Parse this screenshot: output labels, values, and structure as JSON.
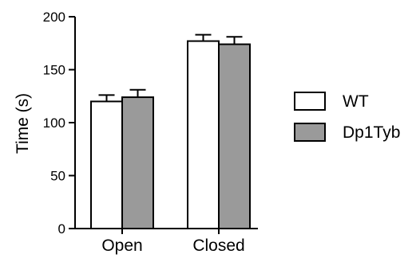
{
  "chart_data": {
    "type": "bar",
    "categories": [
      "Open",
      "Closed"
    ],
    "series": [
      {
        "name": "WT",
        "values": [
          120,
          177
        ],
        "errors": [
          6,
          6
        ],
        "color": "#ffffff"
      },
      {
        "name": "Dp1Tyb",
        "values": [
          124,
          174
        ],
        "errors": [
          7,
          7
        ],
        "color": "#9a9a9a"
      }
    ],
    "ylabel": "Time (s)",
    "ylim": [
      0,
      200
    ],
    "yticks": [
      0,
      50,
      100,
      150,
      200
    ],
    "grid": false,
    "legend_position": "right"
  }
}
